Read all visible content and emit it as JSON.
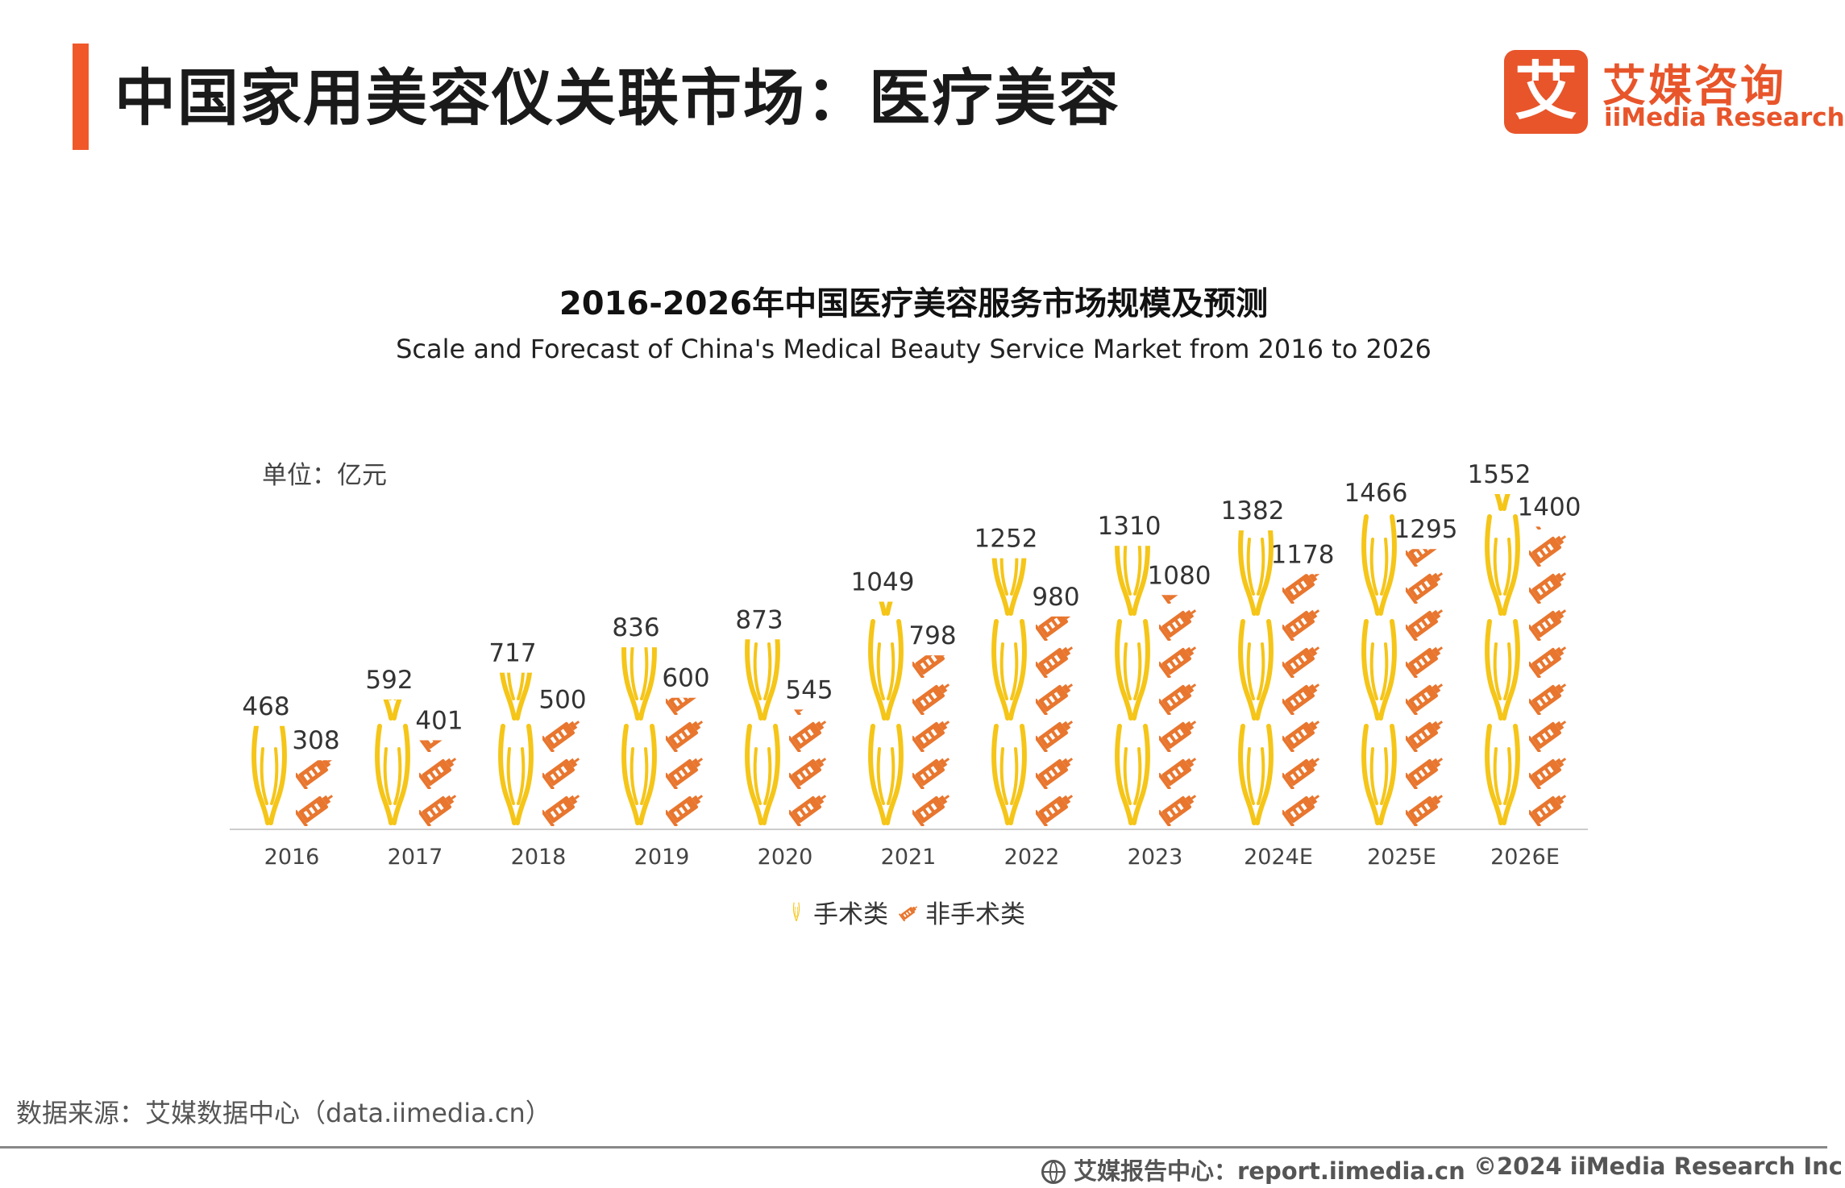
{
  "page": {
    "title": "中国家用美容仪关联市场：医疗美容",
    "source": "数据来源：艾媒数据中心（data.iimedia.cn）",
    "footer_left": "艾媒报告中心：report.iimedia.cn",
    "footer_right": "©2024 iiMedia Research Inc",
    "unit": "单位：亿元"
  },
  "logo": {
    "mark": "艾",
    "cn": "艾媒咨询",
    "en": "iiMedia Research"
  },
  "colors": {
    "accent": "#f0582a",
    "surgical": "#f5c518",
    "non_surgical": "#e8762f",
    "axis": "#cccccc"
  },
  "icons": {
    "surgical": "scalpel-icon",
    "non_surgical": "syringe-icon"
  },
  "chart_data": {
    "type": "bar",
    "title": "2016-2026年中国医疗美容服务市场规模及预测",
    "subtitle": "Scale and Forecast of China's Medical Beauty Service Market from 2016 to 2026",
    "categories": [
      "2016",
      "2017",
      "2018",
      "2019",
      "2020",
      "2021",
      "2022",
      "2023",
      "2024E",
      "2025E",
      "2026E"
    ],
    "series": [
      {
        "name": "手术类",
        "values": [
          468,
          592,
          717,
          836,
          873,
          1049,
          1252,
          1310,
          1382,
          1466,
          1552
        ]
      },
      {
        "name": "非手术类",
        "values": [
          308,
          401,
          500,
          600,
          545,
          798,
          980,
          1080,
          1178,
          1295,
          1400
        ]
      }
    ],
    "ylim": [
      0,
      1552
    ],
    "legend_position": "bottom",
    "grid": false
  }
}
